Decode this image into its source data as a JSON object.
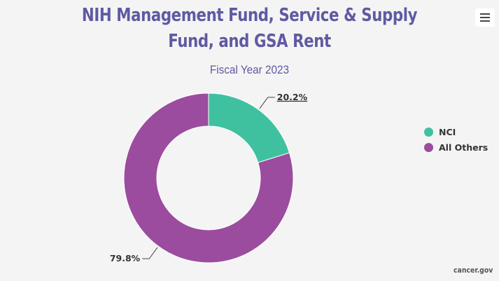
{
  "header": {
    "title_line1": "NIH Management Fund, Service & Supply",
    "title_line2": "Fund, and GSA Rent",
    "subtitle": "Fiscal Year 2023"
  },
  "chart_data": {
    "type": "pie",
    "variant": "donut",
    "title": "NIH Management Fund, Service & Supply Fund, and GSA Rent",
    "subtitle": "Fiscal Year 2023",
    "slices": [
      {
        "name": "NCI",
        "value": 20.2,
        "label": "20.2%",
        "color": "#3fc1a0"
      },
      {
        "name": "All Others",
        "value": 79.8,
        "label": "79.8%",
        "color": "#9b4c9e"
      }
    ],
    "legend_position": "right"
  },
  "menu": {
    "icon": "hamburger-menu-icon"
  },
  "credit": "cancer.gov"
}
